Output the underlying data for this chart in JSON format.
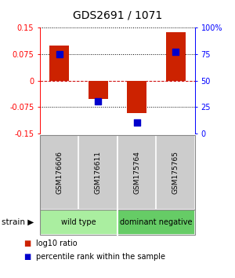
{
  "title": "GDS2691 / 1071",
  "samples": [
    "GSM176606",
    "GSM176611",
    "GSM175764",
    "GSM175765"
  ],
  "log10_ratio": [
    0.1,
    -0.052,
    -0.092,
    0.138
  ],
  "percentile_rank_val": [
    0.075,
    -0.058,
    -0.118,
    0.082
  ],
  "ylim": [
    -0.15,
    0.15
  ],
  "yticks_left": [
    -0.15,
    -0.075,
    0,
    0.075,
    0.15
  ],
  "ytick_labels_left": [
    "-0.15",
    "-0.075",
    "0",
    "0.075",
    "0.15"
  ],
  "right_pct_labels": [
    "0",
    "25",
    "50",
    "75",
    "100%"
  ],
  "groups": [
    {
      "label": "wild type",
      "cols": [
        0,
        1
      ],
      "color": "#aaeea0"
    },
    {
      "label": "dominant negative",
      "cols": [
        2,
        3
      ],
      "color": "#66cc66"
    }
  ],
  "bar_color": "#cc2200",
  "dot_color": "#0000cc",
  "bar_width": 0.5,
  "dot_size": 30,
  "zero_line_color": "#cc0000",
  "sample_box_color": "#cccccc",
  "legend_bar_label": "log10 ratio",
  "legend_dot_label": "percentile rank within the sample",
  "title_fontsize": 10,
  "tick_fontsize": 7,
  "sample_fontsize": 6.5,
  "group_fontsize": 7,
  "legend_fontsize": 7
}
